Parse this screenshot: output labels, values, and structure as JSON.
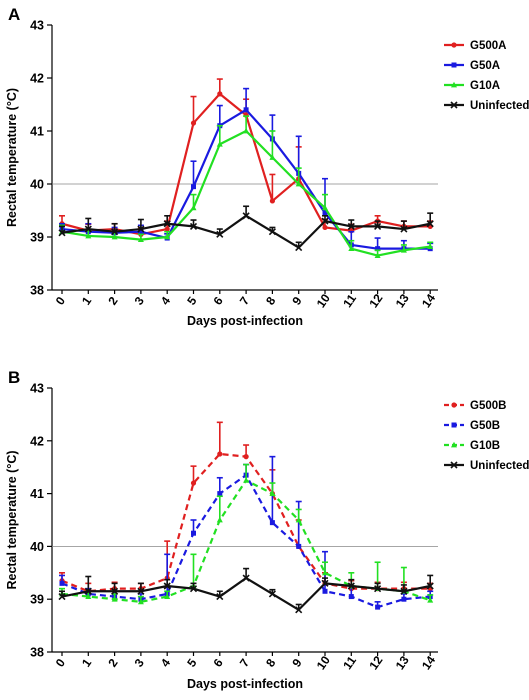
{
  "chart_data": [
    {
      "panel_label": "A",
      "type": "line",
      "xlabel": "Days post-infection",
      "ylabel": "Rectal temperature (°C)",
      "x": [
        0,
        1,
        2,
        3,
        4,
        5,
        6,
        7,
        8,
        9,
        10,
        11,
        12,
        13,
        14
      ],
      "ylim": [
        38,
        43
      ],
      "yticks": [
        38,
        39,
        40,
        41,
        42,
        43
      ],
      "reference_line": 40,
      "legend_position": "top-right",
      "series": [
        {
          "name": "G500A",
          "color": "#e02020",
          "style": "solid",
          "marker": "circle",
          "values": [
            39.25,
            39.12,
            39.15,
            39.05,
            39.15,
            41.15,
            41.7,
            41.3,
            39.68,
            40.1,
            39.18,
            39.12,
            39.3,
            39.2,
            39.2
          ],
          "errors": [
            0.15,
            0.12,
            0.1,
            0.12,
            0.15,
            0.5,
            0.28,
            0.3,
            0.5,
            0.6,
            0.15,
            0.12,
            0.1,
            0.1,
            0.1
          ]
        },
        {
          "name": "G50A",
          "color": "#1a1ae0",
          "style": "solid",
          "marker": "square",
          "values": [
            39.15,
            39.1,
            39.08,
            39.1,
            38.98,
            39.95,
            41.1,
            41.4,
            40.85,
            40.2,
            39.45,
            38.85,
            38.78,
            38.78,
            38.78
          ],
          "errors": [
            0.1,
            0.15,
            0.1,
            0.12,
            0.08,
            0.48,
            0.38,
            0.4,
            0.45,
            0.7,
            0.65,
            0.25,
            0.2,
            0.15,
            0.1
          ]
        },
        {
          "name": "G10A",
          "color": "#22e022",
          "style": "solid",
          "marker": "triangle",
          "values": [
            39.1,
            39.02,
            39.0,
            38.95,
            39.0,
            39.55,
            40.75,
            41.0,
            40.5,
            40.0,
            39.55,
            38.78,
            38.65,
            38.75,
            38.82
          ],
          "errors": [
            0.12,
            0.1,
            0.1,
            0.1,
            0.1,
            0.25,
            0.35,
            0.28,
            0.5,
            0.3,
            0.25,
            0.15,
            0.1,
            0.1,
            0.08
          ]
        },
        {
          "name": "Uninfected",
          "color": "#111111",
          "style": "solid",
          "marker": "x",
          "values": [
            39.08,
            39.15,
            39.1,
            39.15,
            39.25,
            39.2,
            39.05,
            39.4,
            39.1,
            38.8,
            39.3,
            39.2,
            39.2,
            39.15,
            39.25
          ],
          "errors": [
            0.12,
            0.2,
            0.15,
            0.18,
            0.15,
            0.12,
            0.1,
            0.18,
            0.08,
            0.1,
            0.1,
            0.12,
            0.1,
            0.15,
            0.2
          ]
        }
      ]
    },
    {
      "panel_label": "B",
      "type": "line",
      "xlabel": "Days post-infection",
      "ylabel": "Rectal temperature (°C)",
      "x": [
        0,
        1,
        2,
        3,
        4,
        5,
        6,
        7,
        8,
        9,
        10,
        11,
        12,
        13,
        14
      ],
      "ylim": [
        38,
        43
      ],
      "yticks": [
        38,
        39,
        40,
        41,
        42,
        43
      ],
      "reference_line": 40,
      "legend_position": "top-right",
      "series": [
        {
          "name": "G500B",
          "color": "#e02020",
          "style": "dashed",
          "marker": "circle",
          "values": [
            39.35,
            39.15,
            39.2,
            39.2,
            39.4,
            41.2,
            41.75,
            41.7,
            41.0,
            40.0,
            39.3,
            39.2,
            39.2,
            39.2,
            39.2
          ],
          "errors": [
            0.15,
            0.15,
            0.12,
            0.1,
            0.7,
            0.32,
            0.6,
            0.22,
            0.45,
            0.5,
            0.2,
            0.15,
            0.12,
            0.12,
            0.1
          ]
        },
        {
          "name": "G50B",
          "color": "#1a1ae0",
          "style": "dashed",
          "marker": "square",
          "values": [
            39.3,
            39.1,
            39.05,
            39.0,
            39.1,
            40.25,
            41.0,
            41.35,
            40.45,
            40.0,
            39.15,
            39.05,
            38.85,
            39.0,
            39.05
          ],
          "errors": [
            0.15,
            0.1,
            0.1,
            0.1,
            0.75,
            0.25,
            0.3,
            0.2,
            1.25,
            0.85,
            0.75,
            0.2,
            0.1,
            0.1,
            0.1
          ]
        },
        {
          "name": "G10B",
          "color": "#22e022",
          "style": "dashed",
          "marker": "triangle",
          "values": [
            39.1,
            39.05,
            39.0,
            38.95,
            39.05,
            39.25,
            40.5,
            41.25,
            41.0,
            40.5,
            39.5,
            39.25,
            39.2,
            39.15,
            38.98
          ],
          "errors": [
            0.1,
            0.1,
            0.1,
            0.1,
            0.1,
            0.6,
            0.45,
            0.3,
            0.2,
            0.2,
            0.2,
            0.25,
            0.5,
            0.45,
            0.1
          ]
        },
        {
          "name": "Uninfected",
          "color": "#111111",
          "style": "solid",
          "marker": "x",
          "values": [
            39.05,
            39.15,
            39.15,
            39.15,
            39.25,
            39.2,
            39.05,
            39.4,
            39.1,
            38.8,
            39.3,
            39.25,
            39.2,
            39.15,
            39.25
          ],
          "errors": [
            0.1,
            0.28,
            0.15,
            0.15,
            0.12,
            0.1,
            0.1,
            0.18,
            0.08,
            0.1,
            0.1,
            0.12,
            0.1,
            0.12,
            0.2
          ]
        }
      ]
    }
  ]
}
